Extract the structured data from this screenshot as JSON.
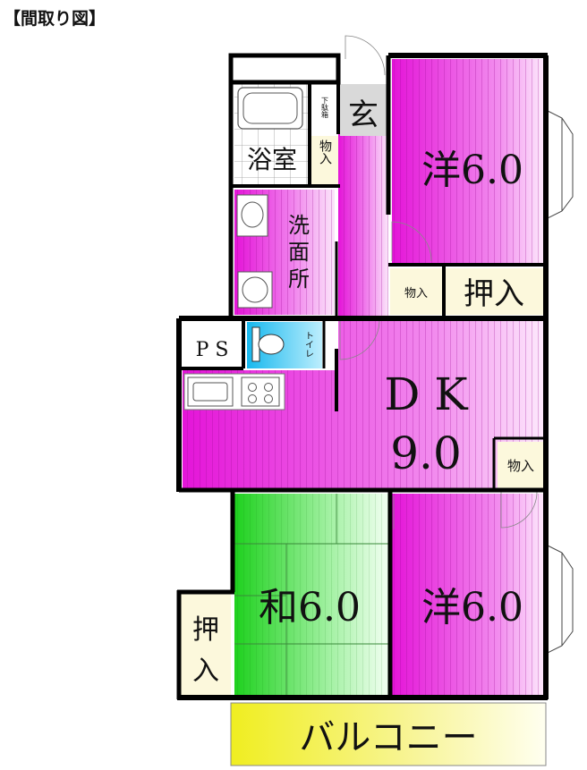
{
  "caption": "【間取り図】",
  "rooms": {
    "genkan": "玄",
    "bath": "浴室",
    "shoebox": "下駄箱",
    "storage_hall": "物入",
    "washroom": [
      "洗",
      "面",
      "所"
    ],
    "storage_small": "物入",
    "western1": "洋6.0",
    "oshiire1": "押入",
    "ps": "P S",
    "toilet": "トイレ",
    "dk_name": "D K",
    "dk_size": "9.0",
    "storage_dk": "物入",
    "japanese": "和6.0",
    "oshiire2": [
      "押",
      "入"
    ],
    "western2": "洋6.0",
    "balcony": "バルコニー"
  },
  "colors": {
    "magenta": "#e619d9",
    "green": "#22d322",
    "cyan": "#29c7f0",
    "yellow": "#f2ef3a",
    "cream": "#fcf8dc",
    "wall": "#000000"
  }
}
